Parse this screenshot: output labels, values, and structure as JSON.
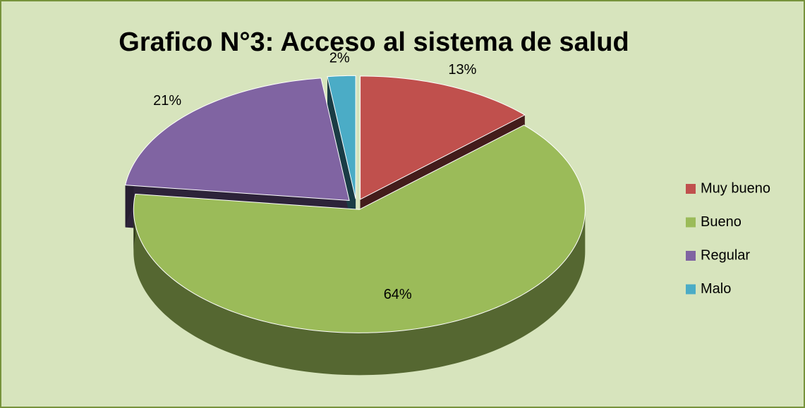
{
  "chart_data": {
    "type": "pie3d",
    "title": "Grafico N°3: Acceso al sistema de salud",
    "categories": [
      "Muy bueno",
      "Bueno",
      "Regular",
      "Malo"
    ],
    "values": [
      13,
      64,
      21,
      2
    ],
    "value_labels": [
      "13%",
      "64%",
      "21%",
      "2%"
    ],
    "colors": [
      "#c0504d",
      "#9bbb59",
      "#8064a2",
      "#4bacc6"
    ],
    "legend": "right"
  }
}
